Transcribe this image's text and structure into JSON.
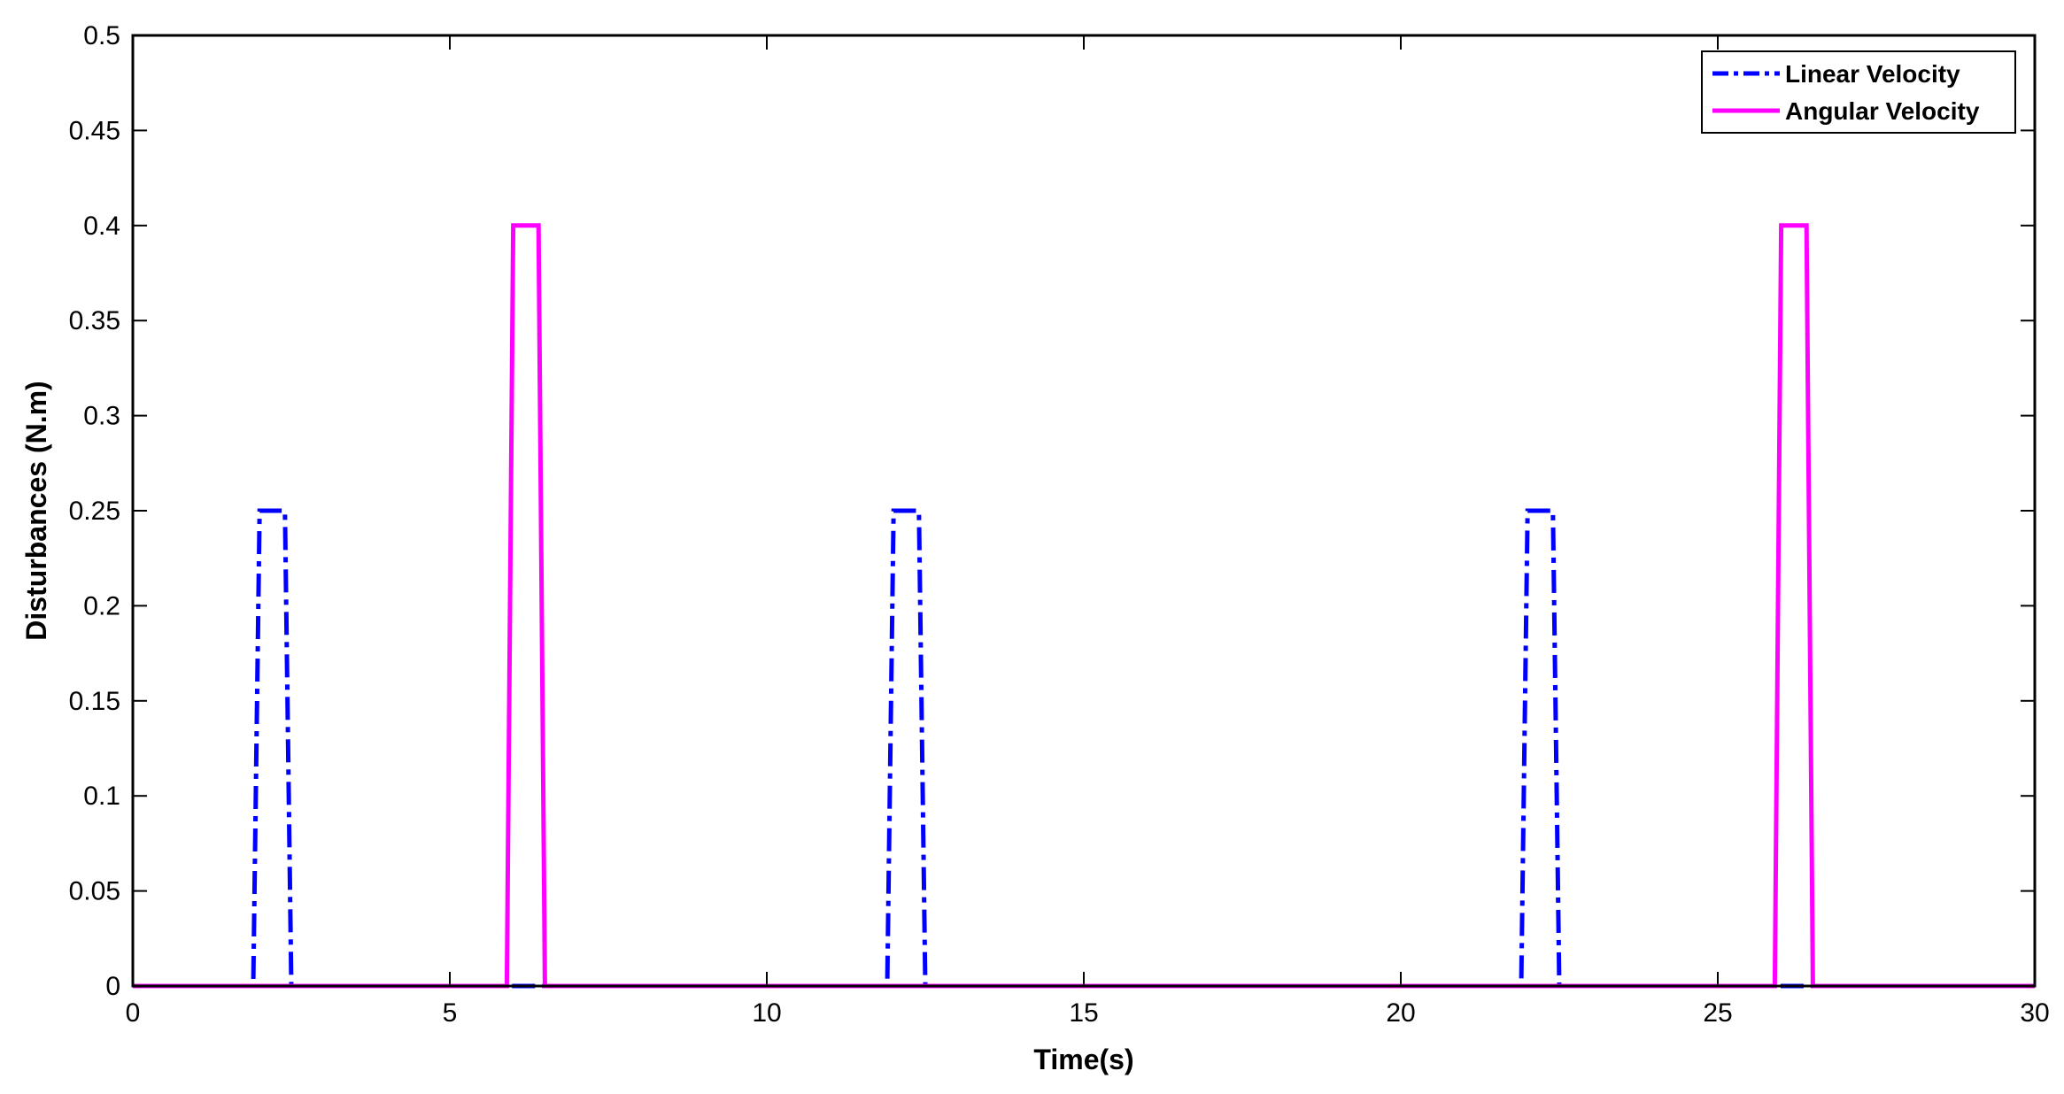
{
  "chart_data": {
    "type": "line",
    "title": "",
    "xlabel": "Time(s)",
    "ylabel": "Disturbances (N.m)",
    "xlim": [
      0,
      30
    ],
    "ylim": [
      0,
      0.5
    ],
    "x_ticks": [
      "0",
      "5",
      "10",
      "15",
      "20",
      "25",
      "30"
    ],
    "y_ticks": [
      "0",
      "0.05",
      "0.1",
      "0.15",
      "0.2",
      "0.25",
      "0.3",
      "0.35",
      "0.4",
      "0.45",
      "0.5"
    ],
    "grid": false,
    "legend_position": "top-right",
    "series": [
      {
        "name": "Linear Velocity",
        "color": "#0000ff",
        "line_style": "dash-dot",
        "x": [
          0,
          1.9,
          2.0,
          2.4,
          2.5,
          11.9,
          12.0,
          12.4,
          12.5,
          21.9,
          22.0,
          22.4,
          22.5,
          30
        ],
        "y": [
          0,
          0,
          0.25,
          0.25,
          0,
          0,
          0.25,
          0.25,
          0,
          0,
          0.25,
          0.25,
          0,
          0
        ]
      },
      {
        "name": "Angular Velocity",
        "color": "#ff00ff",
        "line_style": "solid",
        "x": [
          0,
          5.9,
          6.0,
          6.4,
          6.5,
          25.9,
          26.0,
          26.4,
          26.5,
          30
        ],
        "y": [
          0,
          0,
          0.4,
          0.4,
          0,
          0,
          0.4,
          0.4,
          0,
          0
        ]
      }
    ]
  }
}
